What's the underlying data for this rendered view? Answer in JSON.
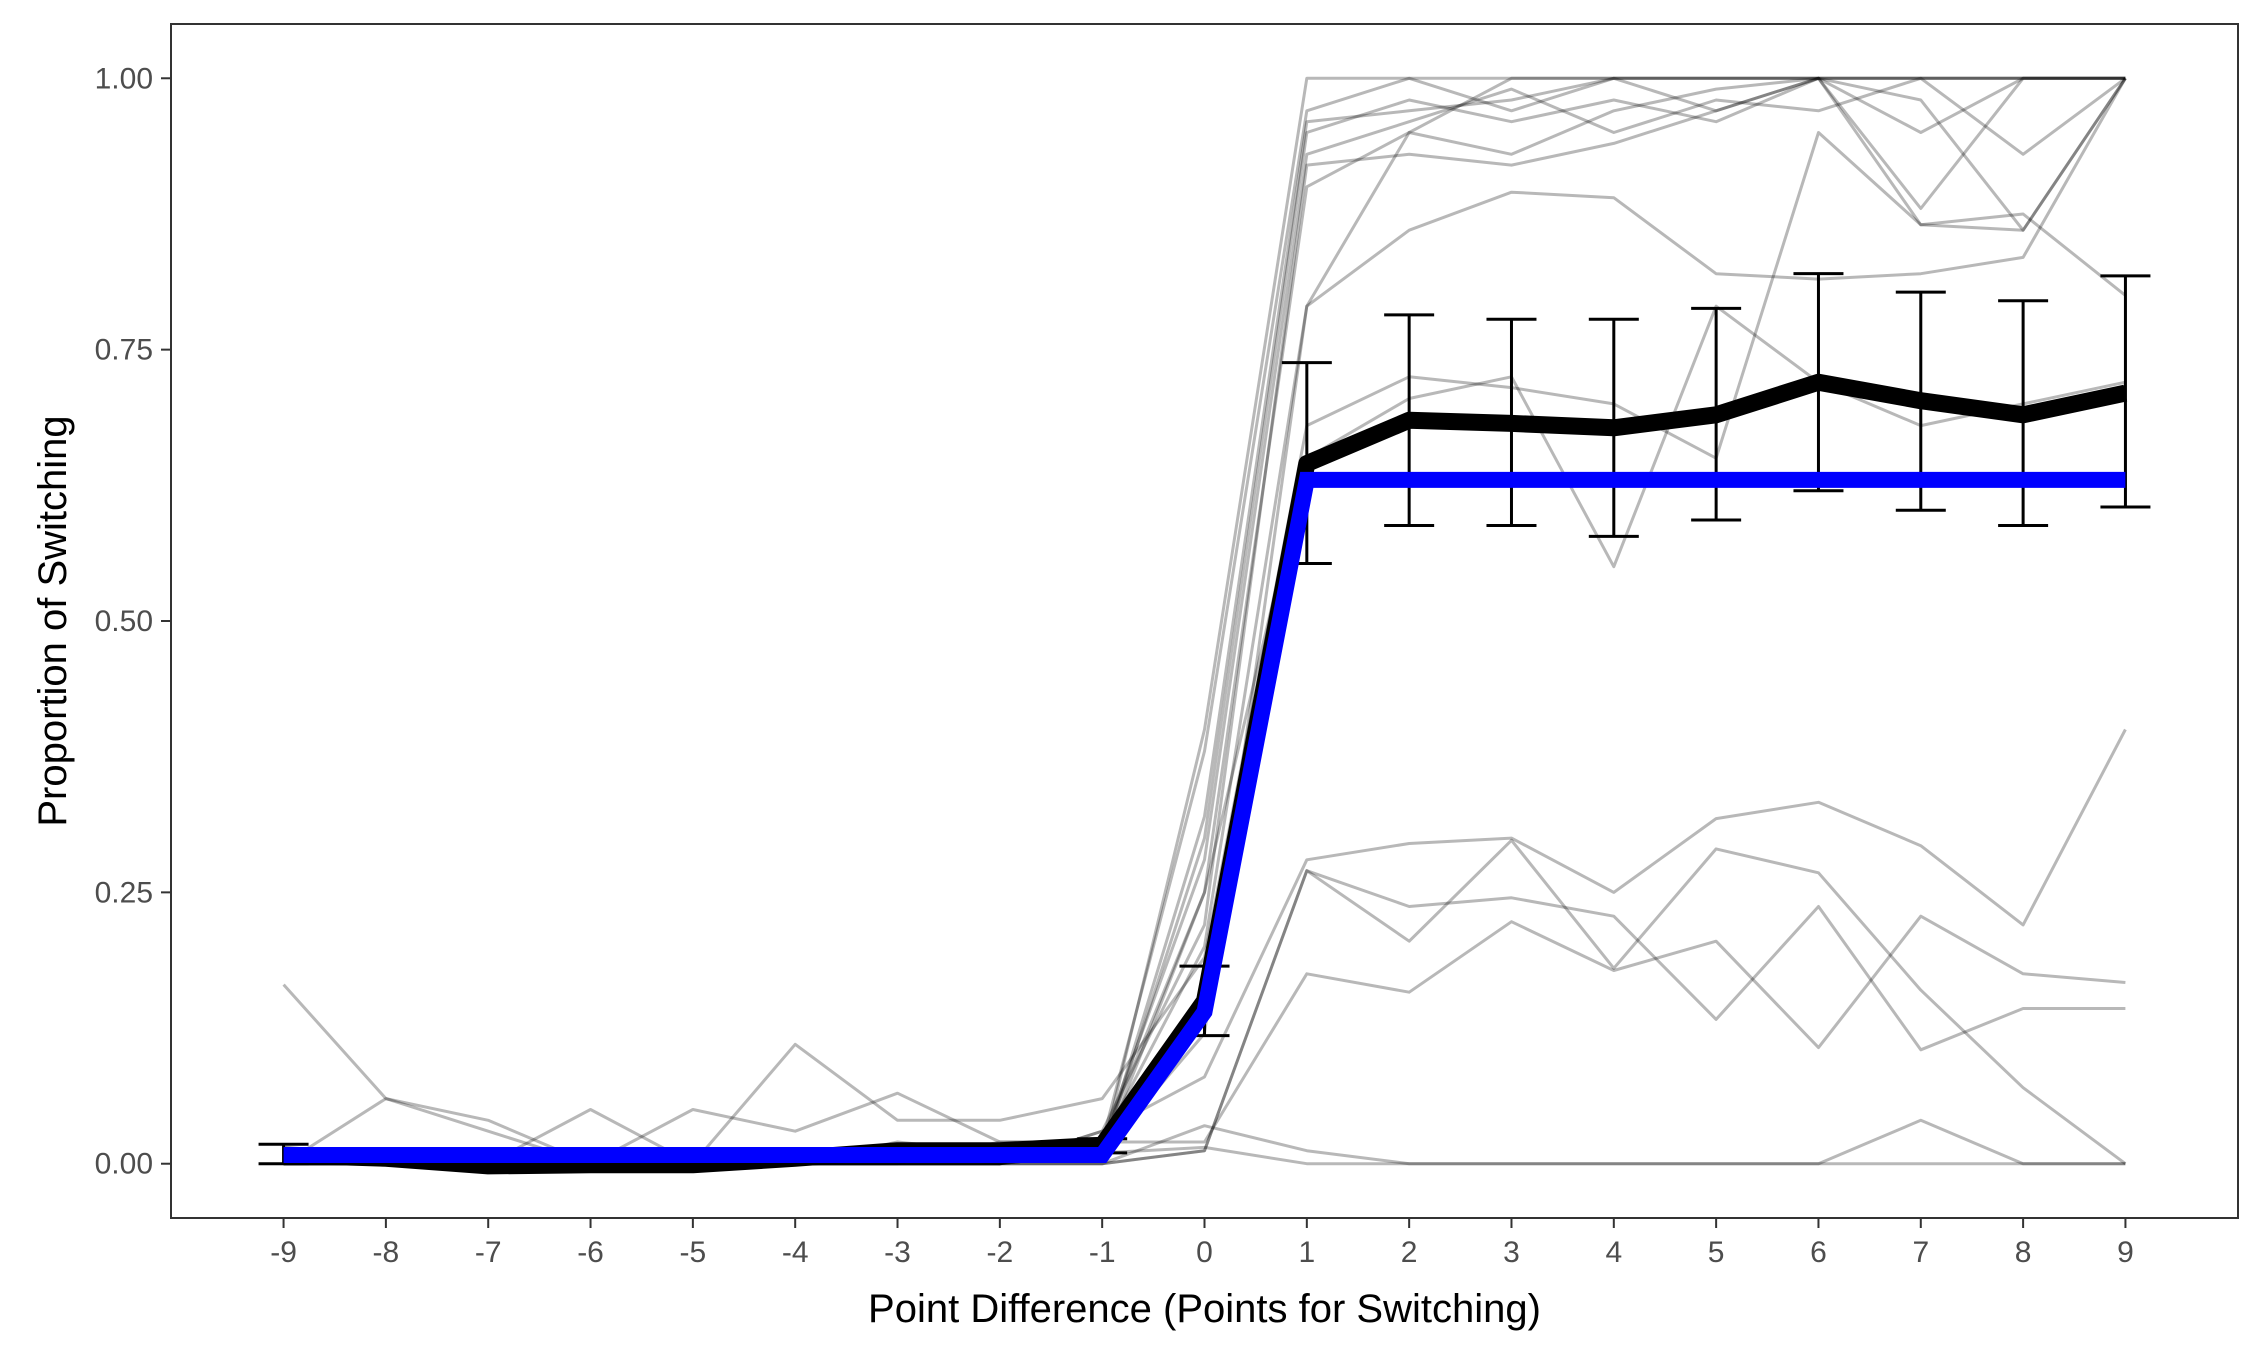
{
  "chart_data": {
    "type": "line",
    "xlabel": "Point Difference (Points for Switching)",
    "ylabel": "Proportion of Switching",
    "x": [
      -9,
      -8,
      -7,
      -6,
      -5,
      -4,
      -3,
      -2,
      -1,
      0,
      1,
      2,
      3,
      4,
      5,
      6,
      7,
      8,
      9
    ],
    "x_tick_labels": [
      "-9",
      "-8",
      "-7",
      "-6",
      "-5",
      "-4",
      "-3",
      "-2",
      "-1",
      "0",
      "1",
      "2",
      "3",
      "4",
      "5",
      "6",
      "7",
      "8",
      "9"
    ],
    "y_ticks": [
      0,
      0.25,
      0.5,
      0.75,
      1.0
    ],
    "y_tick_labels": [
      "0.00",
      "0.25",
      "0.50",
      "0.75",
      "1.00"
    ],
    "xlim": [
      -10.1,
      10.1
    ],
    "ylim": [
      -0.05,
      1.05
    ],
    "grid": false,
    "legend": "none",
    "colors": {
      "mean": "#000000",
      "fit": "#0000ff",
      "individual": "#000000"
    },
    "mean": [
      0.008,
      0.005,
      -0.002,
      -0.001,
      -0.001,
      0.005,
      0.012,
      0.012,
      0.017,
      0.15,
      0.645,
      0.685,
      0.682,
      0.678,
      0.69,
      0.72,
      0.703,
      0.69,
      0.71
    ],
    "error_bars": {
      "lower": [
        0.0,
        null,
        null,
        null,
        null,
        null,
        null,
        null,
        0.01,
        0.118,
        0.553,
        0.588,
        0.588,
        0.578,
        0.593,
        0.62,
        0.602,
        0.588,
        0.605
      ],
      "upper": [
        0.018,
        null,
        null,
        null,
        null,
        null,
        null,
        null,
        0.023,
        0.182,
        0.738,
        0.782,
        0.778,
        0.778,
        0.788,
        0.82,
        0.803,
        0.795,
        0.818
      ]
    },
    "fit": [
      0.008,
      0.008,
      0.008,
      0.008,
      0.008,
      0.008,
      0.008,
      0.008,
      0.008,
      0.14,
      0.63,
      0.63,
      0.63,
      0.63,
      0.63,
      0.63,
      0.63,
      0.63,
      0.63
    ],
    "individuals": [
      [
        0,
        0,
        0,
        0,
        0,
        0,
        0,
        0,
        0.01,
        0.4,
        1.0,
        1.0,
        1.0,
        1.0,
        1.0,
        1.0,
        1.0,
        1.0,
        1.0
      ],
      [
        0,
        0,
        0,
        0,
        0,
        0,
        0,
        0,
        0.02,
        0.38,
        0.97,
        1.0,
        0.97,
        1.0,
        0.97,
        1.0,
        1.0,
        1.0,
        1.0
      ],
      [
        0,
        0,
        0,
        0,
        0,
        0,
        0,
        0,
        0.01,
        0.32,
        0.96,
        0.97,
        0.98,
        1.0,
        1.0,
        1.0,
        1.0,
        1.0,
        1.0
      ],
      [
        0,
        0,
        0,
        0,
        0,
        0,
        0.02,
        0.01,
        0.01,
        0.3,
        0.95,
        0.98,
        0.96,
        0.98,
        0.96,
        1.0,
        0.95,
        1.0,
        1.0
      ],
      [
        0,
        0,
        0,
        0,
        0,
        0,
        0,
        0.02,
        0.02,
        0.28,
        0.93,
        0.96,
        0.99,
        0.95,
        0.98,
        0.97,
        1.0,
        0.93,
        1.0
      ],
      [
        0,
        0,
        0,
        0,
        0,
        0,
        0.01,
        0,
        0.01,
        0.25,
        0.9,
        0.95,
        0.93,
        0.97,
        0.99,
        1.0,
        0.88,
        1.0,
        1.0
      ],
      [
        0,
        0,
        0,
        0,
        0,
        0,
        0,
        0,
        0.03,
        0.22,
        0.92,
        0.93,
        0.92,
        0.94,
        0.97,
        1.0,
        0.98,
        0.86,
        1.0
      ],
      [
        0,
        0,
        0,
        0,
        0,
        0,
        0,
        0,
        0.02,
        0.2,
        0.79,
        0.86,
        0.895,
        0.89,
        0.82,
        0.815,
        0.82,
        0.835,
        1.0
      ],
      [
        0.165,
        0.06,
        0.04,
        0,
        0,
        0,
        0.015,
        0.015,
        0.01,
        0.12,
        0.79,
        0.95,
        1.0,
        1.0,
        1.0,
        1.0,
        0.865,
        0.875,
        0.8
      ],
      [
        0,
        0,
        0,
        0.05,
        0,
        0.11,
        0.04,
        0.04,
        0.06,
        0.19,
        0.68,
        0.725,
        0.715,
        0.7,
        0.65,
        0.95,
        0.865,
        0.86,
        1.0
      ],
      [
        0,
        0.06,
        0.03,
        0,
        0.05,
        0.03,
        0.065,
        0.02,
        0.02,
        0.25,
        0.65,
        0.705,
        0.725,
        0.55,
        0.79,
        0.72,
        0.68,
        0.7,
        0.72
      ],
      [
        0,
        0,
        0,
        0,
        0,
        0,
        0,
        0,
        0.03,
        0.08,
        0.28,
        0.295,
        0.3,
        0.25,
        0.318,
        0.333,
        0.293,
        0.22,
        0.4
      ],
      [
        0,
        0,
        0,
        0,
        0,
        0,
        0,
        0,
        0,
        0.012,
        0.27,
        0.205,
        0.298,
        0.18,
        0.29,
        0.268,
        0.16,
        0.07,
        0.0
      ],
      [
        0,
        0,
        0,
        0,
        0,
        0,
        0,
        0,
        0.02,
        0.02,
        0.175,
        0.158,
        0.223,
        0.178,
        0.205,
        0.107,
        0.228,
        0.175,
        0.167
      ],
      [
        0,
        0,
        0,
        0,
        0,
        0,
        0,
        0,
        0,
        0.012,
        0.27,
        0.237,
        0.245,
        0.228,
        0.133,
        0.237,
        0.105,
        0.143,
        0.143
      ],
      [
        0,
        0,
        0,
        0,
        0,
        0,
        0,
        0,
        0,
        0.035,
        0.012,
        0,
        0,
        0,
        0,
        0,
        0.04,
        0,
        0
      ],
      [
        0,
        0,
        0,
        0,
        0,
        0,
        0,
        0,
        0.01,
        0.015,
        0.0,
        0,
        0,
        0,
        0,
        0,
        0,
        0,
        0
      ]
    ]
  }
}
